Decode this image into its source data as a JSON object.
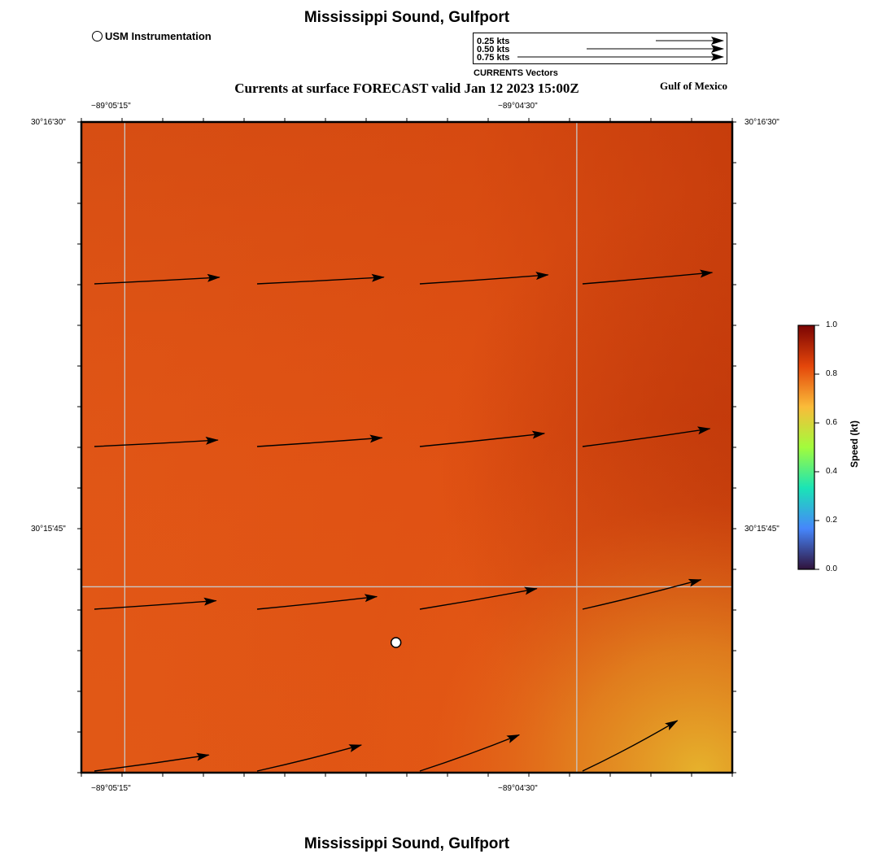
{
  "header": {
    "title": "Mississippi Sound, Gulfport",
    "subtitle": "Currents at surface FORECAST valid Jan 12 2023 15:00Z",
    "region_label": "Gulf of Mexico"
  },
  "footer": {
    "title": "Mississippi Sound, Gulfport"
  },
  "station_legend": {
    "label": "USM Instrumentation",
    "icon": "open-circle-icon"
  },
  "vector_legend": {
    "caption": "CURRENTS Vectors",
    "entries": [
      {
        "label": "0.25 kts",
        "speed_kt": 0.25
      },
      {
        "label": "0.50 kts",
        "speed_kt": 0.5
      },
      {
        "label": "0.75 kts",
        "speed_kt": 0.75
      }
    ]
  },
  "map": {
    "lon_ticks": [
      {
        "value": -89.0875,
        "label": "−89°05'15\""
      },
      {
        "value": -89.075,
        "label": "−89°04'30\""
      }
    ],
    "lat_ticks": [
      {
        "value": 30.275,
        "label": "30°16'30\""
      },
      {
        "value": 30.2625,
        "label": "30°15'45\""
      }
    ],
    "colors": {
      "field_top_right": "#c63c0c",
      "field_main": "#e35414",
      "field_bottom_right": "#e0a22a",
      "grid": "#c8c8c8",
      "frame": "#000000"
    },
    "station": {
      "lon": -89.08,
      "lat": 30.261
    }
  },
  "chart_data": {
    "type": "quiver",
    "title": "Currents at surface FORECAST valid Jan 12 2023 15:00Z",
    "units": "kt",
    "rows": [
      {
        "row": 1,
        "vectors": [
          {
            "speed": 0.77,
            "dir_deg": 87
          },
          {
            "speed": 0.78,
            "dir_deg": 87
          },
          {
            "speed": 0.79,
            "dir_deg": 86
          },
          {
            "speed": 0.8,
            "dir_deg": 85
          }
        ]
      },
      {
        "row": 2,
        "vectors": [
          {
            "speed": 0.76,
            "dir_deg": 87
          },
          {
            "speed": 0.77,
            "dir_deg": 86
          },
          {
            "speed": 0.77,
            "dir_deg": 84
          },
          {
            "speed": 0.79,
            "dir_deg": 82
          }
        ]
      },
      {
        "row": 3,
        "vectors": [
          {
            "speed": 0.75,
            "dir_deg": 86
          },
          {
            "speed": 0.74,
            "dir_deg": 84
          },
          {
            "speed": 0.73,
            "dir_deg": 80
          },
          {
            "speed": 0.75,
            "dir_deg": 76
          }
        ]
      },
      {
        "row": 4,
        "vectors": [
          {
            "speed": 0.71,
            "dir_deg": 82
          },
          {
            "speed": 0.66,
            "dir_deg": 76
          },
          {
            "speed": 0.65,
            "dir_deg": 70
          },
          {
            "speed": 0.66,
            "dir_deg": 62
          }
        ]
      }
    ],
    "colorbar": {
      "label": "Speed (kt)",
      "range": [
        0.0,
        1.0
      ],
      "ticks": [
        {
          "value": 0.0,
          "label": "0.0"
        },
        {
          "value": 0.2,
          "label": "0.2"
        },
        {
          "value": 0.4,
          "label": "0.4"
        },
        {
          "value": 0.6,
          "label": "0.6"
        },
        {
          "value": 0.8,
          "label": "0.8"
        },
        {
          "value": 1.0,
          "label": "1.0"
        }
      ],
      "colors": [
        "#30123b",
        "#4686fb",
        "#1ae4b6",
        "#a2fc3c",
        "#fabb39",
        "#e4460a",
        "#7a0403"
      ]
    }
  }
}
